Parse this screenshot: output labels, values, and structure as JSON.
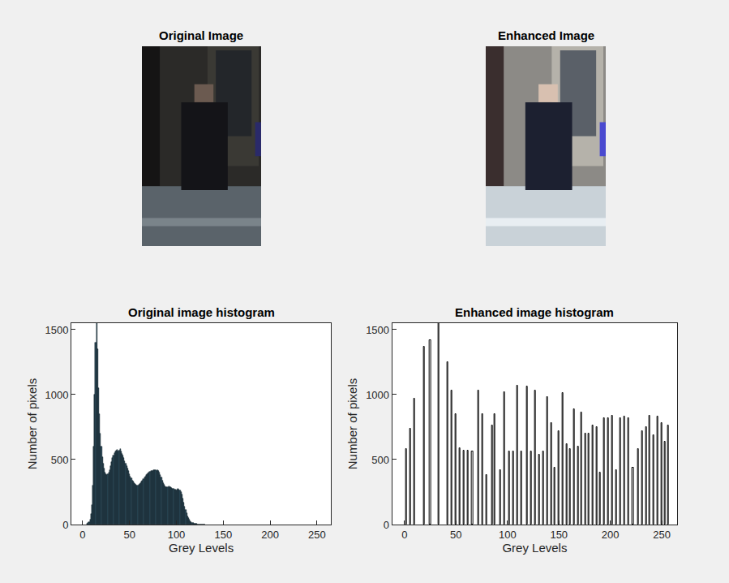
{
  "images": [
    {
      "title": "Original Image"
    },
    {
      "title": "Enhanced Image"
    }
  ],
  "chart_data": [
    {
      "type": "bar",
      "title": "Original image histogram",
      "xlabel": "Grey Levels",
      "ylabel": "Number of pixels",
      "color": "#2c4a5a",
      "x": [
        5,
        6,
        7,
        8,
        9,
        10,
        11,
        12,
        13,
        14,
        15,
        16,
        17,
        18,
        19,
        20,
        21,
        22,
        23,
        24,
        25,
        26,
        27,
        28,
        29,
        30,
        31,
        32,
        33,
        34,
        35,
        36,
        37,
        38,
        39,
        40,
        41,
        42,
        43,
        44,
        45,
        46,
        47,
        48,
        49,
        50,
        51,
        52,
        53,
        54,
        55,
        56,
        57,
        58,
        59,
        60,
        61,
        62,
        63,
        64,
        65,
        66,
        67,
        68,
        69,
        70,
        71,
        72,
        73,
        74,
        75,
        76,
        77,
        78,
        79,
        80,
        81,
        82,
        83,
        84,
        85,
        86,
        87,
        88,
        89,
        90,
        91,
        92,
        93,
        94,
        95,
        96,
        97,
        98,
        99,
        100,
        101,
        102,
        103,
        104,
        105,
        106,
        107,
        108,
        109,
        110,
        111,
        112,
        113,
        114,
        115,
        116,
        117,
        118,
        119,
        120,
        121,
        122,
        123,
        124,
        125,
        126,
        127,
        128,
        129,
        130
      ],
      "values": [
        5,
        10,
        20,
        40,
        80,
        150,
        300,
        600,
        1000,
        1400,
        1550,
        1350,
        1050,
        850,
        700,
        600,
        520,
        470,
        430,
        400,
        390,
        380,
        390,
        400,
        420,
        450,
        480,
        510,
        530,
        550,
        560,
        570,
        575,
        565,
        570,
        580,
        560,
        545,
        530,
        510,
        490,
        470,
        450,
        430,
        410,
        390,
        370,
        355,
        340,
        330,
        320,
        310,
        305,
        300,
        300,
        305,
        310,
        320,
        330,
        340,
        350,
        360,
        370,
        380,
        390,
        395,
        400,
        405,
        410,
        415,
        415,
        420,
        420,
        420,
        415,
        420,
        410,
        400,
        380,
        360,
        340,
        320,
        305,
        295,
        290,
        285,
        290,
        295,
        290,
        285,
        280,
        275,
        275,
        270,
        270,
        265,
        270,
        275,
        270,
        265,
        250,
        230,
        200,
        170,
        140,
        110,
        85,
        65,
        50,
        38,
        28,
        20,
        15,
        11,
        8,
        6,
        5,
        4,
        3,
        3,
        2,
        2,
        2,
        1,
        1,
        1
      ],
      "xlim": [
        -12,
        265
      ],
      "xticks": [
        0,
        50,
        100,
        150,
        200,
        250
      ],
      "ylim": [
        0,
        1550
      ],
      "yticks": [
        0,
        500,
        1000,
        1500
      ]
    },
    {
      "type": "bar",
      "title": "Enhanced image histogram",
      "xlabel": "Grey Levels",
      "ylabel": "Number of pixels",
      "color": "#000000",
      "x": [
        2,
        6,
        10,
        19,
        25,
        33,
        42,
        46,
        50,
        54,
        58,
        62,
        66,
        72,
        76,
        80,
        85,
        88,
        93,
        97,
        102,
        106,
        110,
        114,
        119,
        123,
        127,
        131,
        135,
        139,
        143,
        146,
        150,
        154,
        158,
        161,
        165,
        169,
        172,
        176,
        179,
        183,
        187,
        190,
        194,
        198,
        202,
        206,
        210,
        214,
        218,
        222,
        227,
        231,
        235,
        238,
        242,
        246,
        250,
        253,
        256
      ],
      "values": [
        580,
        740,
        970,
        1370,
        1420,
        1550,
        1250,
        1030,
        850,
        590,
        570,
        570,
        560,
        1030,
        850,
        380,
        760,
        850,
        420,
        1020,
        560,
        560,
        1070,
        560,
        1060,
        560,
        1030,
        540,
        560,
        980,
        780,
        440,
        720,
        1010,
        620,
        580,
        890,
        600,
        860,
        700,
        700,
        760,
        750,
        400,
        820,
        820,
        840,
        420,
        820,
        830,
        820,
        440,
        580,
        720,
        750,
        840,
        690,
        830,
        780,
        640,
        760
      ],
      "xlim": [
        -12,
        265
      ],
      "xticks": [
        0,
        50,
        100,
        150,
        200,
        250
      ],
      "ylim": [
        0,
        1550
      ],
      "yticks": [
        0,
        500,
        1000,
        1500
      ]
    }
  ]
}
